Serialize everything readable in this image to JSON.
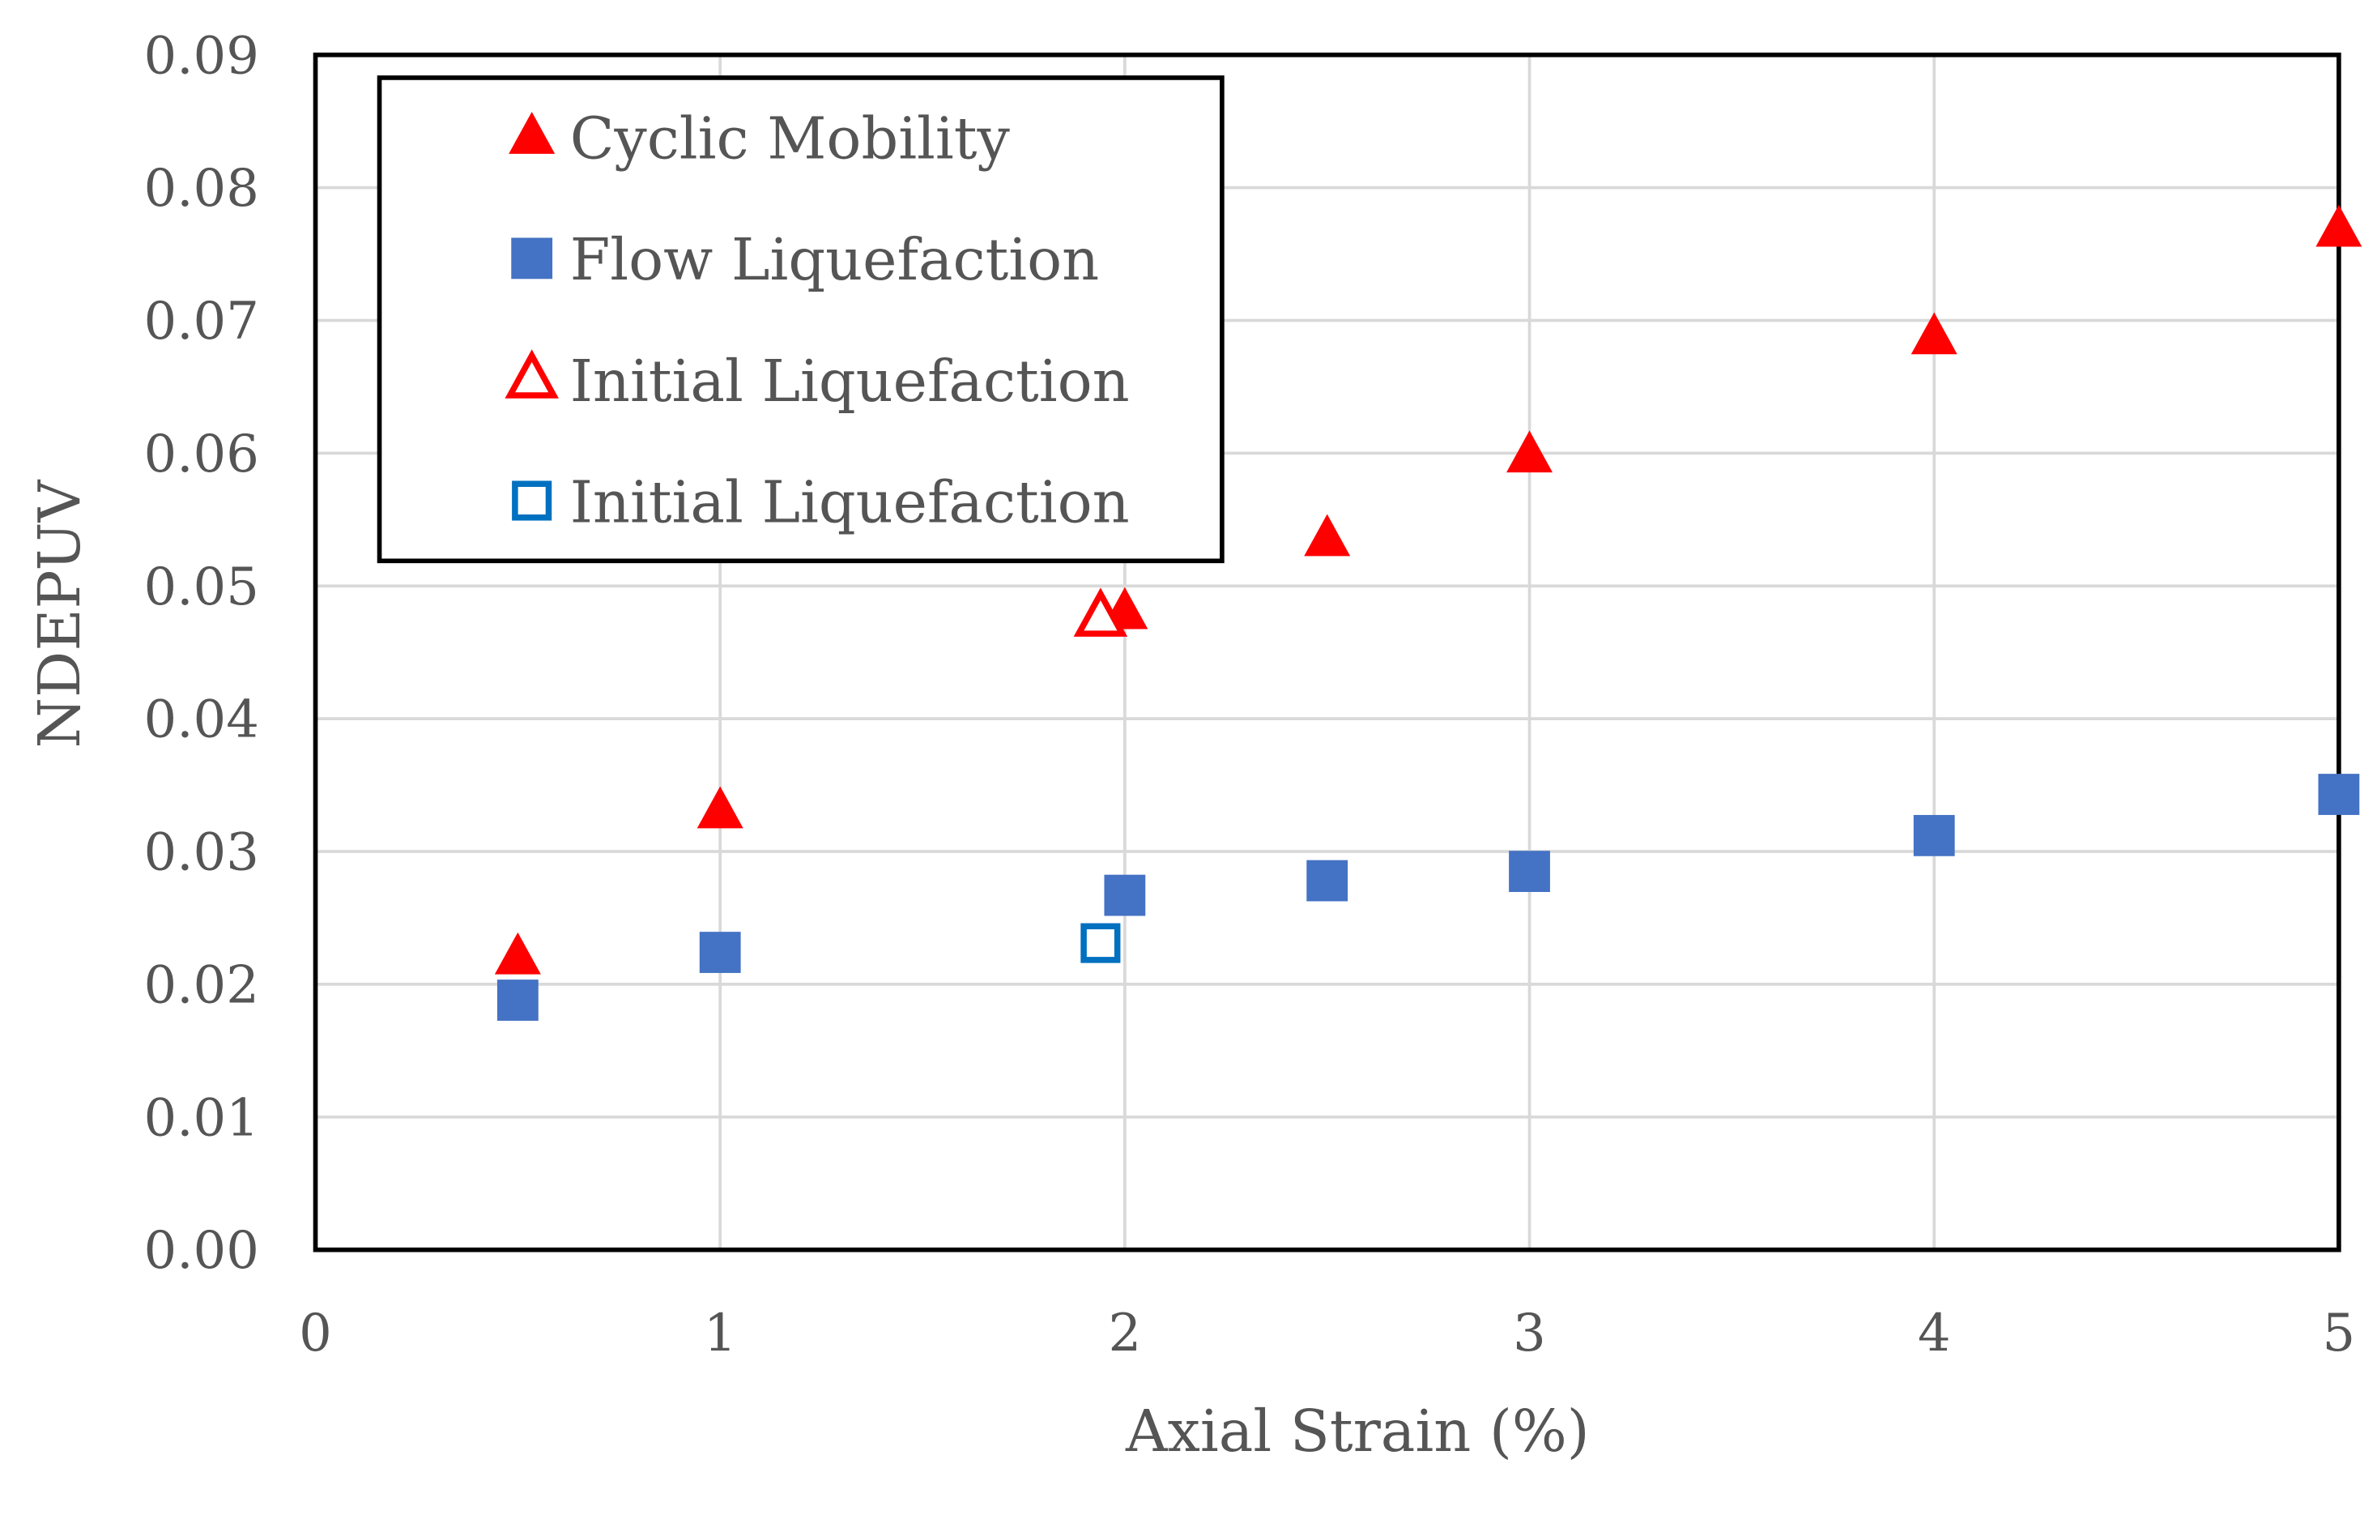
{
  "chart_data": {
    "type": "scatter",
    "title": "",
    "xlabel": "Axial Strain (%)",
    "ylabel": "NDEPUV",
    "xlim": [
      0,
      5
    ],
    "ylim": [
      0,
      0.09
    ],
    "xticks": [
      "0",
      "1",
      "2",
      "3",
      "4",
      "5"
    ],
    "yticks": [
      "0.00",
      "0.01",
      "0.02",
      "0.03",
      "0.04",
      "0.05",
      "0.06",
      "0.07",
      "0.08",
      "0.09"
    ],
    "grid": true,
    "legend_position": "top-left",
    "series": [
      {
        "name": "Cyclic Mobility",
        "marker": "triangle-filled",
        "color": "#ff0000",
        "x": [
          0.5,
          1,
          2,
          2.5,
          3,
          4,
          5
        ],
        "y": [
          0.022,
          0.033,
          0.048,
          0.0535,
          0.0598,
          0.0687,
          0.0768
        ]
      },
      {
        "name": "Flow Liquefaction",
        "marker": "square-filled",
        "color": "#4472c4",
        "x": [
          0.5,
          1,
          2,
          2.5,
          3,
          4,
          5
        ],
        "y": [
          0.0188,
          0.0224,
          0.0267,
          0.0278,
          0.0285,
          0.0312,
          0.0343
        ]
      },
      {
        "name": "Initial Liquefaction",
        "marker": "triangle-open",
        "color": "#ff0000",
        "x": [
          1.94
        ],
        "y": [
          0.0476
        ]
      },
      {
        "name": "Initial Liquefaction",
        "marker": "square-open",
        "color": "#0070c0",
        "x": [
          1.94
        ],
        "y": [
          0.0231
        ]
      }
    ]
  }
}
